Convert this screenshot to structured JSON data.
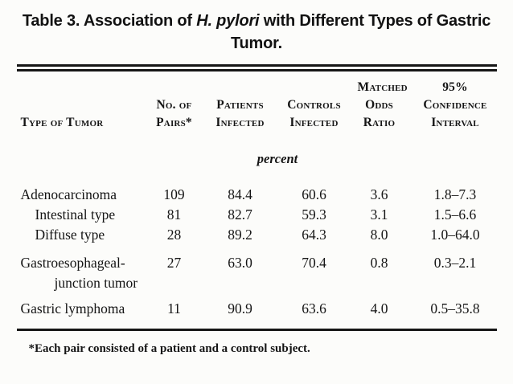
{
  "page": {
    "background": "#fcfcfa",
    "text_color": "#151515",
    "rule_color": "#161616"
  },
  "title": {
    "line1_prefix": "Table 3. Association of ",
    "line1_italic": "H. pylori",
    "line1_suffix": " with Different Types of Gastric",
    "line2": "Tumor."
  },
  "table": {
    "unit_label": "percent",
    "columns": [
      {
        "id": "type-of-tumor",
        "lines": [
          "Type of Tumor"
        ]
      },
      {
        "id": "no-of-pairs",
        "lines": [
          "No. of",
          "Pairs*"
        ]
      },
      {
        "id": "patients-infected",
        "lines": [
          "Patients",
          "Infected"
        ]
      },
      {
        "id": "controls-infected",
        "lines": [
          "Controls",
          "Infected"
        ]
      },
      {
        "id": "matched-odds-ratio",
        "lines": [
          "Matched",
          "Odds",
          "Ratio"
        ]
      },
      {
        "id": "confidence-interval",
        "lines": [
          "95%",
          "Confidence",
          "Interval"
        ]
      }
    ],
    "rows": [
      {
        "label": "Adenocarcinoma",
        "pairs": "109",
        "patients_infected": "84.4",
        "controls_infected": "60.6",
        "odds_ratio": "3.6",
        "ci": "1.8–7.3"
      },
      {
        "label": "Intestinal type",
        "pairs": "81",
        "patients_infected": "82.7",
        "controls_infected": "59.3",
        "odds_ratio": "3.1",
        "ci": "1.5–6.6"
      },
      {
        "label": "Diffuse type",
        "pairs": "28",
        "patients_infected": "89.2",
        "controls_infected": "64.3",
        "odds_ratio": "8.0",
        "ci": "1.0–64.0"
      },
      {
        "label": "Gastroesophageal-",
        "label_line2": "junction tumor",
        "pairs": "27",
        "patients_infected": "63.0",
        "controls_infected": "70.4",
        "odds_ratio": "0.8",
        "ci": "0.3–2.1"
      },
      {
        "label": "Gastric lymphoma",
        "pairs": "11",
        "patients_infected": "90.9",
        "controls_infected": "63.6",
        "odds_ratio": "4.0",
        "ci": "0.5–35.8"
      }
    ],
    "footnote": "*Each pair consisted of a patient and a control subject."
  }
}
